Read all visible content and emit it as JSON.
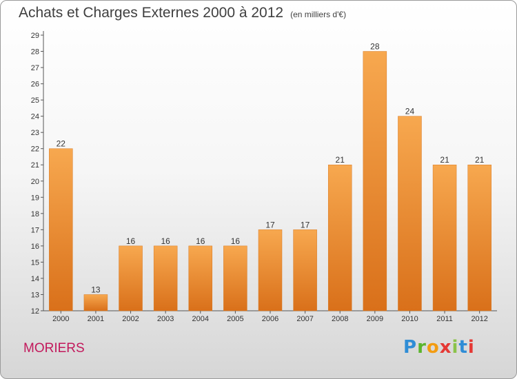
{
  "title": "Achats et Charges Externes 2000 à 2012",
  "subtitle": "(en milliers d'€)",
  "commune": "MORIERS",
  "logo": {
    "p": "P",
    "r": "r",
    "o": "o",
    "x": "x",
    "i1": "i",
    "t": "t",
    "i2": "i"
  },
  "colors": {
    "bar_top": "#f7a84f",
    "bar_bottom": "#d9701a",
    "commune": "#c2185b"
  },
  "chart_data": {
    "type": "bar",
    "title": "Achats et Charges Externes 2000 à 2012",
    "subtitle": "(en milliers d'€)",
    "categories": [
      "2000",
      "2001",
      "2002",
      "2003",
      "2004",
      "2005",
      "2006",
      "2007",
      "2008",
      "2009",
      "2010",
      "2011",
      "2012"
    ],
    "values": [
      22,
      13,
      16,
      16,
      16,
      16,
      17,
      17,
      21,
      28,
      24,
      21,
      21
    ],
    "ylim": [
      12,
      29
    ],
    "yticks": [
      12,
      13,
      14,
      15,
      16,
      17,
      18,
      19,
      20,
      21,
      22,
      23,
      24,
      25,
      26,
      27,
      28,
      29
    ],
    "grid": false,
    "legend": "none"
  }
}
